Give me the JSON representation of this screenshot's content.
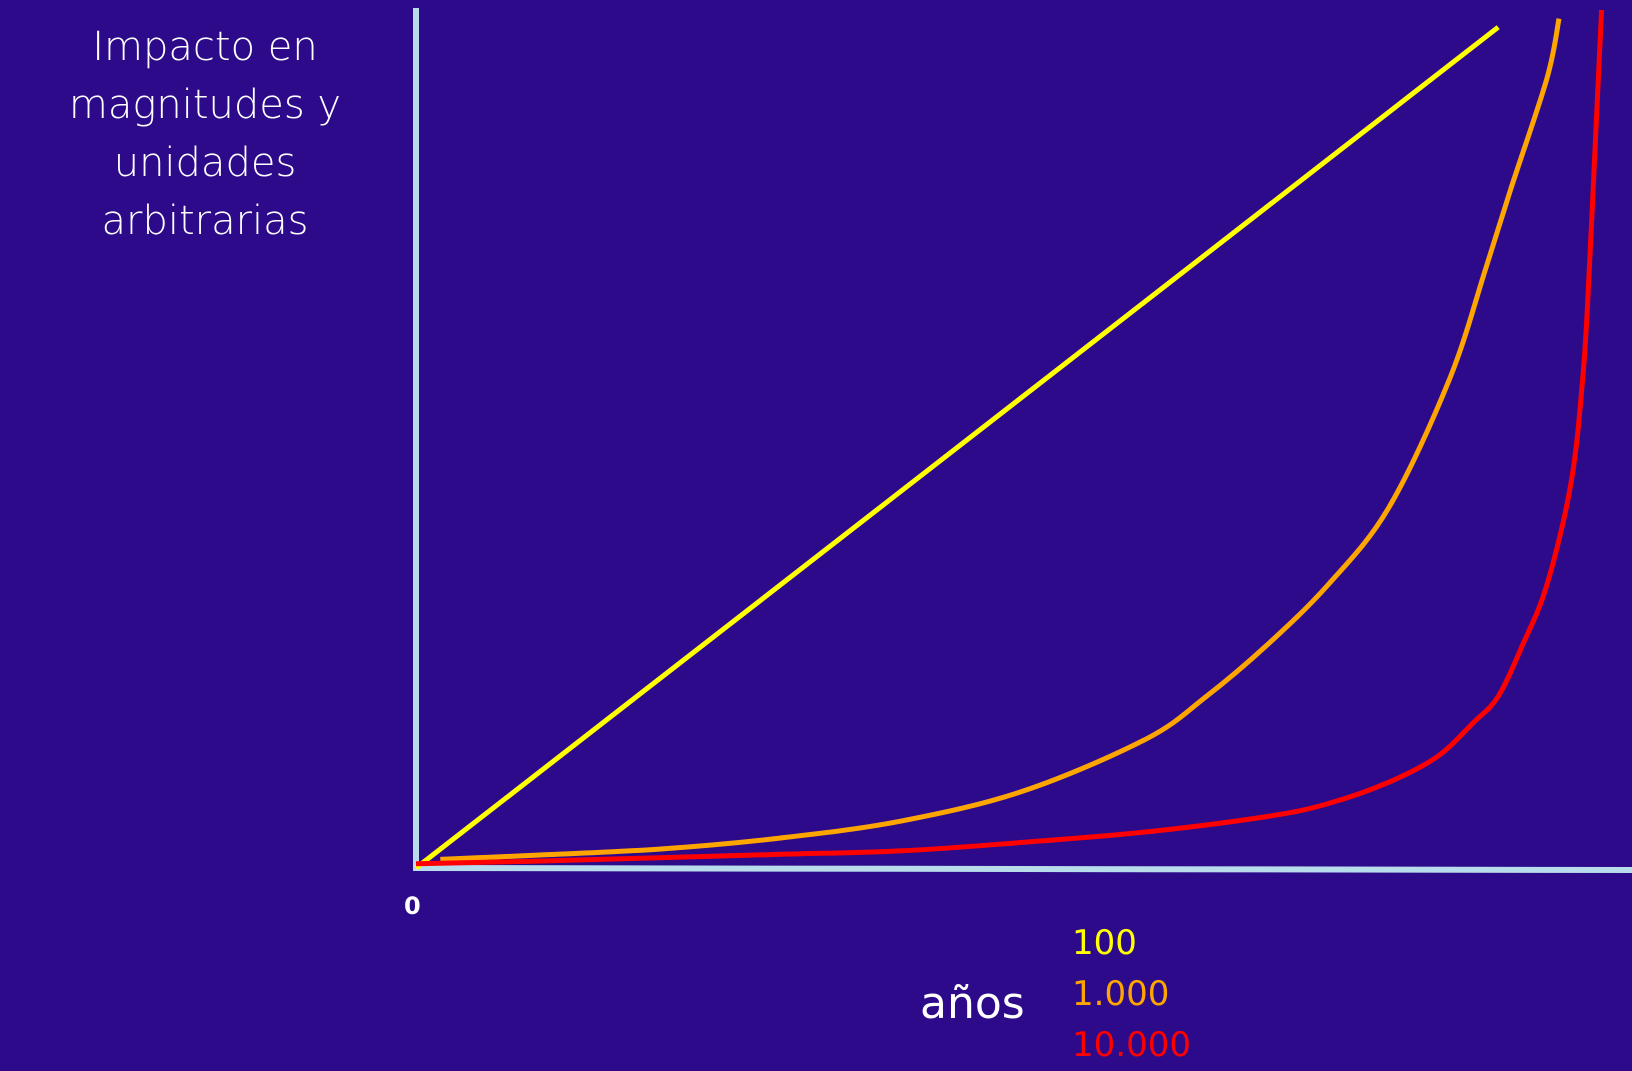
{
  "chart_data": {
    "type": "line",
    "ylabel_lines": [
      "Impacto en",
      "magnitudes y",
      "unidades arbitrarias"
    ],
    "xlabel": "años",
    "origin_tick": "0",
    "axis_color": "#b8dcec",
    "background": "#2c0a8a",
    "grid": false,
    "xlim": [
      0,
      1
    ],
    "ylim": [
      0,
      1
    ],
    "legend_placement": "bottom",
    "series": [
      {
        "name": "100",
        "color": "#ffff00",
        "x": [
          0,
          0.89
        ],
        "y": [
          0,
          0.98
        ]
      },
      {
        "name": "1.000",
        "color": "#ffa500",
        "x": [
          0.02,
          0.05,
          0.1,
          0.2,
          0.3,
          0.4,
          0.5,
          0.6,
          0.65,
          0.7,
          0.75,
          0.8,
          0.85,
          0.88,
          0.9,
          0.93,
          0.94
        ],
        "y": [
          0.01,
          0.012,
          0.015,
          0.022,
          0.035,
          0.055,
          0.09,
          0.15,
          0.2,
          0.26,
          0.33,
          0.42,
          0.57,
          0.7,
          0.79,
          0.92,
          0.99
        ]
      },
      {
        "name": "10.000",
        "color": "#ff0000",
        "x": [
          0,
          0.1,
          0.2,
          0.3,
          0.4,
          0.5,
          0.6,
          0.7,
          0.75,
          0.8,
          0.84,
          0.87,
          0.89,
          0.91,
          0.93,
          0.95,
          0.96,
          0.965,
          0.97,
          0.975
        ],
        "y": [
          0.005,
          0.008,
          0.012,
          0.016,
          0.02,
          0.03,
          0.042,
          0.06,
          0.075,
          0.1,
          0.13,
          0.17,
          0.2,
          0.26,
          0.33,
          0.45,
          0.58,
          0.7,
          0.85,
          1.0
        ]
      }
    ]
  }
}
